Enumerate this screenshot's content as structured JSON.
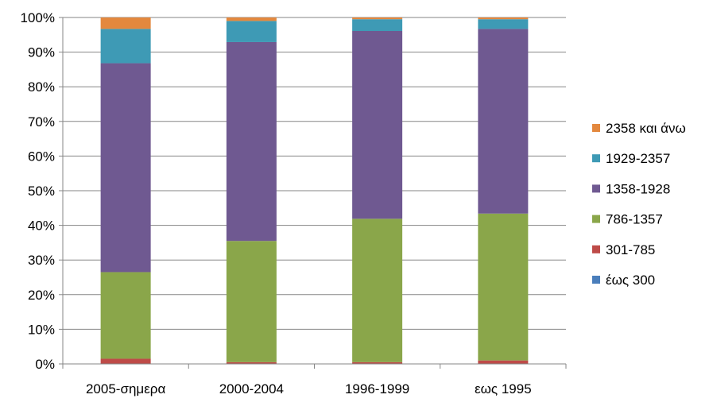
{
  "chart_data": {
    "type": "bar",
    "stacked": true,
    "normalized": true,
    "categories": [
      "2005-σημερα",
      "2000-2004",
      "1996-1999",
      "εως 1995"
    ],
    "series": [
      {
        "name": "έως 300",
        "color": "#4a7ebb",
        "values": [
          0.0,
          0.0,
          0.0,
          0.0
        ]
      },
      {
        "name": "301-785",
        "color": "#be4b48",
        "values": [
          1.5,
          0.5,
          0.5,
          1.0
        ]
      },
      {
        "name": "786-1357",
        "color": "#8aa64a",
        "values": [
          25.0,
          35.0,
          41.4,
          42.4
        ]
      },
      {
        "name": "1358-1928",
        "color": "#6f5991",
        "values": [
          60.3,
          57.4,
          54.2,
          53.3
        ]
      },
      {
        "name": "1929-2357",
        "color": "#3e9ab5",
        "values": [
          9.9,
          6.1,
          3.4,
          2.8
        ]
      },
      {
        "name": "2358 και άνω",
        "color": "#e3883e",
        "values": [
          3.3,
          1.0,
          0.5,
          0.5
        ]
      }
    ],
    "ylim": [
      0,
      100
    ],
    "yticks": [
      "0%",
      "10%",
      "20%",
      "30%",
      "40%",
      "50%",
      "60%",
      "70%",
      "80%",
      "90%",
      "100%"
    ],
    "grid": true,
    "legend": {
      "placement": "right",
      "order": [
        "2358 και άνω",
        "1929-2357",
        "1358-1928",
        "786-1357",
        "301-785",
        "έως 300"
      ]
    }
  }
}
